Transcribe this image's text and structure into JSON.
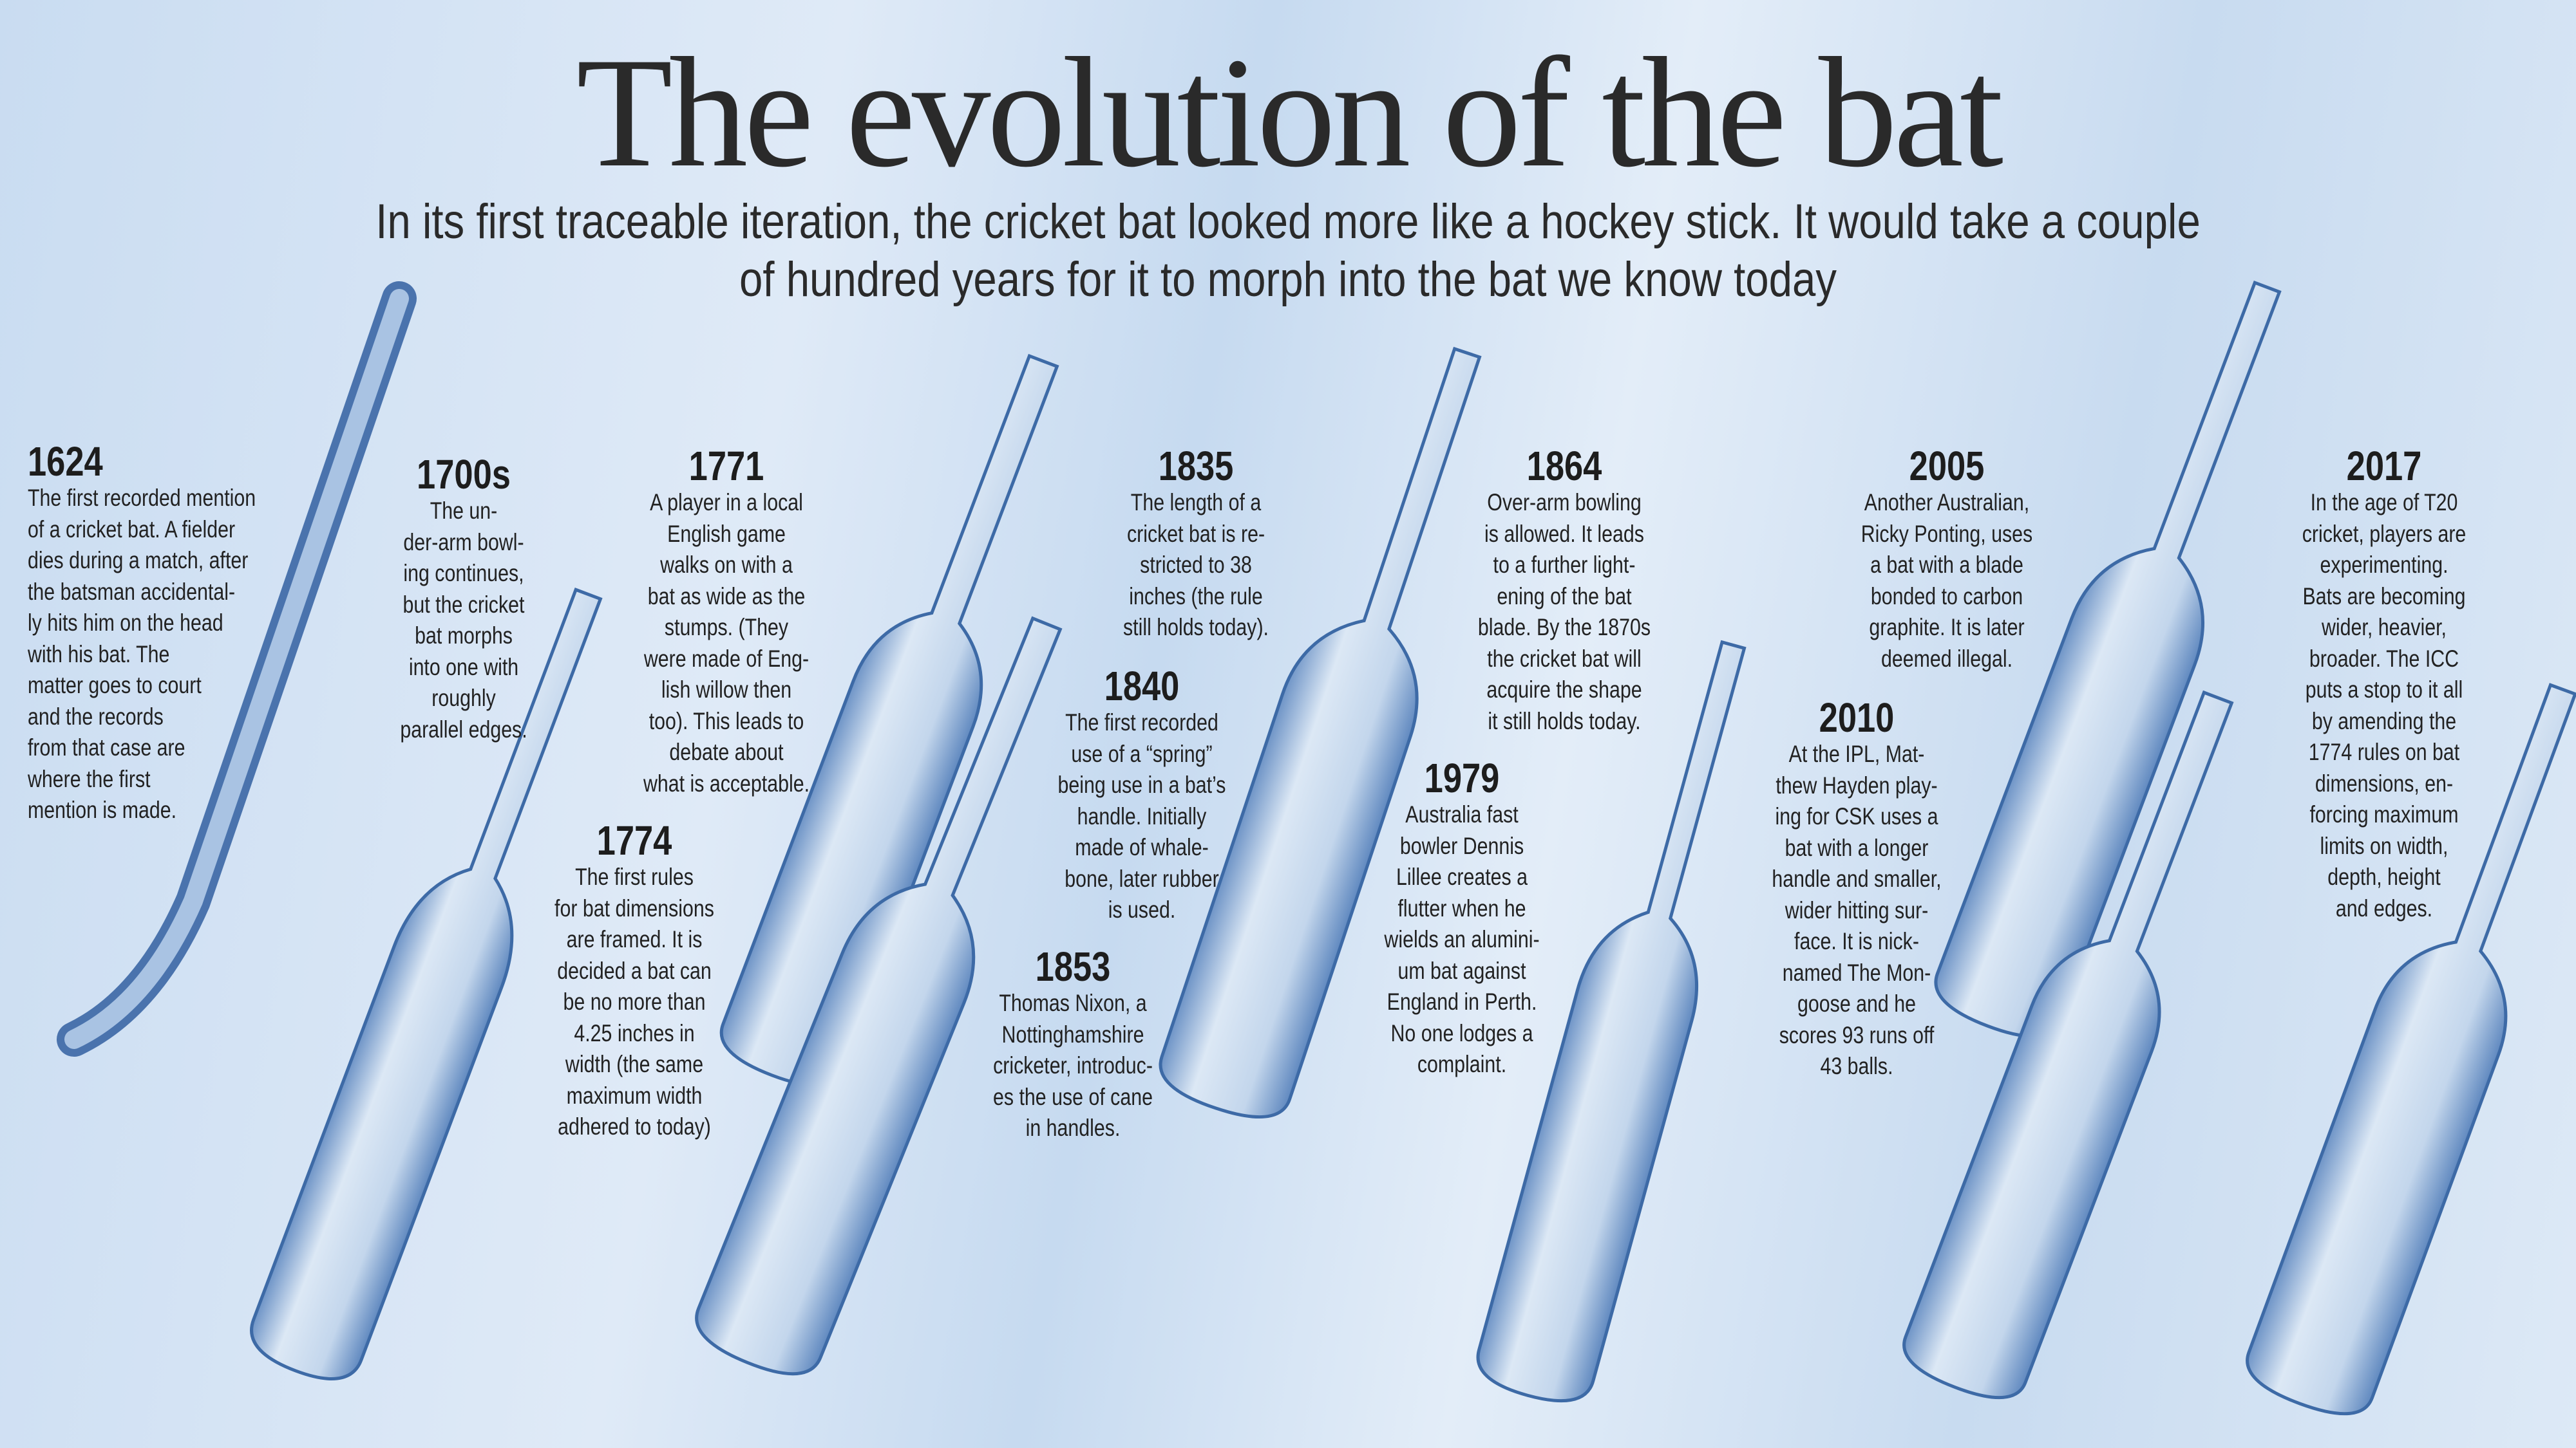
{
  "header": {
    "title": "The evolution  of the bat",
    "subtitle": [
      "In its first traceable iteration, the cricket bat looked more like a hockey stick. It would take a couple",
      "of hundred years for it to morph into the bat we know today"
    ]
  },
  "entries": [
    {
      "year": "1624",
      "lines": [
        "The first recorded mention",
        "of a cricket bat. A fielder",
        "dies during a match, after",
        "the batsman accidental-",
        "ly hits him on the head",
        "with his bat. The",
        "matter goes to court",
        "and the records",
        "from that case are",
        "where the first",
        "mention is made."
      ]
    },
    {
      "year": "1700s",
      "lines": [
        "The un-",
        "der-arm bowl-",
        "ing continues,",
        "but the cricket",
        "bat morphs",
        "into one with",
        "roughly",
        "parallel edges."
      ]
    },
    {
      "year": "1771",
      "lines": [
        "A player in a local",
        "English game",
        "walks on with a",
        "bat as wide as the",
        "stumps. (They",
        "were made of Eng-",
        "lish willow then",
        "too). This leads to",
        "debate about",
        "what is acceptable."
      ]
    },
    {
      "year": "1774",
      "lines": [
        "The first rules",
        "for bat dimensions",
        "are framed. It is",
        "decided a bat can",
        "be no more than",
        "4.25 inches in",
        "width (the same",
        "maximum width",
        "adhered to today)"
      ]
    },
    {
      "year": "1835",
      "lines": [
        "The length of a",
        "cricket bat is re-",
        "stricted to 38",
        "inches (the rule",
        "still holds today)."
      ]
    },
    {
      "year": "1840",
      "lines": [
        "The first recorded",
        "use of a “spring”",
        "being use in a bat’s",
        "handle. Initially",
        "made of whale-",
        "bone, later rubber",
        "is used."
      ]
    },
    {
      "year": "1853",
      "lines": [
        "Thomas Nixon, a",
        "Nottinghamshire",
        "cricketer, introduc-",
        "es the use of cane",
        "in handles."
      ]
    },
    {
      "year": "1864",
      "lines": [
        "Over-arm bowling",
        "is allowed. It leads",
        "to a further light-",
        "ening of the bat",
        "blade. By the 1870s",
        "the cricket bat  will",
        "acquire the shape",
        "it still holds today."
      ]
    },
    {
      "year": "1979",
      "lines": [
        "Australia fast",
        "bowler Dennis",
        "Lillee creates a",
        "flutter when he",
        "wields an alumini-",
        "um bat against",
        "England in Perth.",
        "No one lodges a",
        "complaint."
      ]
    },
    {
      "year": "2005",
      "lines": [
        "Another Australian,",
        "Ricky Ponting, uses",
        "a bat with a blade",
        "bonded to carbon",
        "graphite. It is later",
        "deemed illegal."
      ]
    },
    {
      "year": "2010",
      "lines": [
        "At the IPL, Mat-",
        "thew Hayden play-",
        "ing for CSK uses a",
        "bat with a longer",
        "handle and smaller,",
        "wider hitting sur-",
        "face. It is nick-",
        "named The Mon-",
        "goose and he",
        "scores 93 runs off",
        "43 balls."
      ]
    },
    {
      "year": "2017",
      "lines": [
        "In the age of T20",
        "cricket, players are",
        "experimenting.",
        "Bats are becoming",
        "wider, heavier,",
        "broader. The ICC",
        "puts a stop to it all",
        "by amending the",
        "1774 rules on bat",
        "dimensions, en-",
        "forcing maximum",
        "limits on width,",
        "depth, height",
        "and edges."
      ]
    }
  ]
}
